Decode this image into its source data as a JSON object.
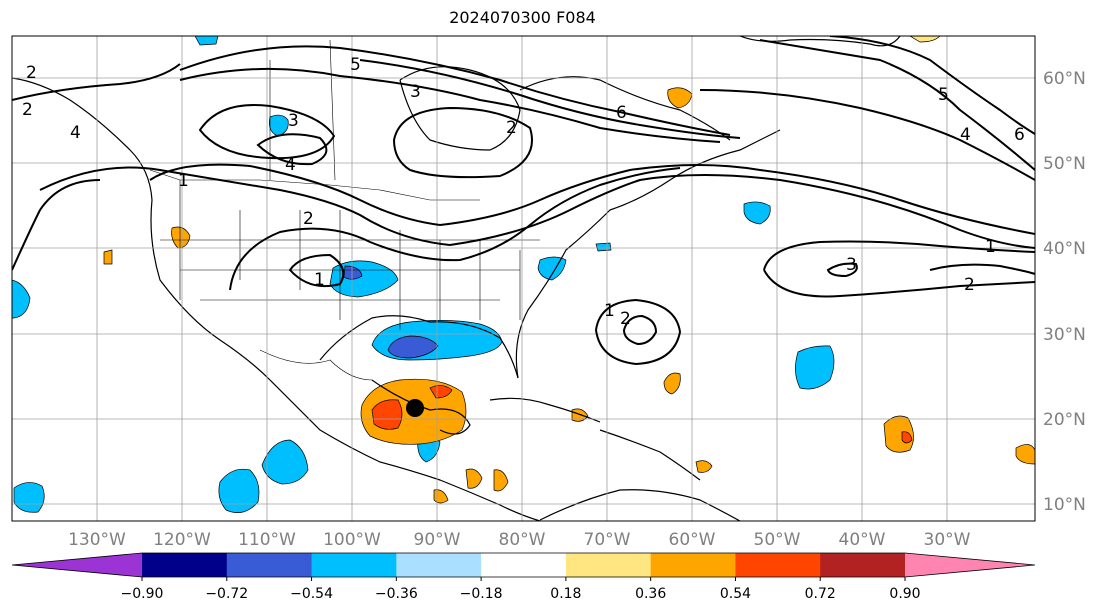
{
  "title": "2024070300 F084",
  "map": {
    "lon_ticks": [
      "130°W",
      "120°W",
      "110°W",
      "100°W",
      "90°W",
      "80°W",
      "70°W",
      "60°W",
      "50°W",
      "40°W",
      "30°W"
    ],
    "lat_ticks": [
      "60°N",
      "50°N",
      "40°N",
      "30°N",
      "20°N",
      "10°N"
    ],
    "grid": true,
    "contour_labels": [
      "5",
      "3",
      "6",
      "2",
      "1",
      "2",
      "4",
      "3",
      "2",
      "4",
      "1",
      "2",
      "1",
      "1",
      "2",
      "5",
      "4",
      "6",
      "2",
      "3"
    ],
    "storm_marker": "filled-circle"
  },
  "colorbar": {
    "colors": [
      "#9c33d4",
      "#00008b",
      "#3a5bd6",
      "#00bfff",
      "#aadfff",
      "#ffffff",
      "#ffe680",
      "#ffa500",
      "#ff4500",
      "#b22222",
      "#ff85b0"
    ],
    "labels": [
      "−0.90",
      "−0.72",
      "−0.54",
      "−0.36",
      "−0.18",
      "0.18",
      "0.36",
      "0.54",
      "0.72",
      "0.90"
    ]
  }
}
